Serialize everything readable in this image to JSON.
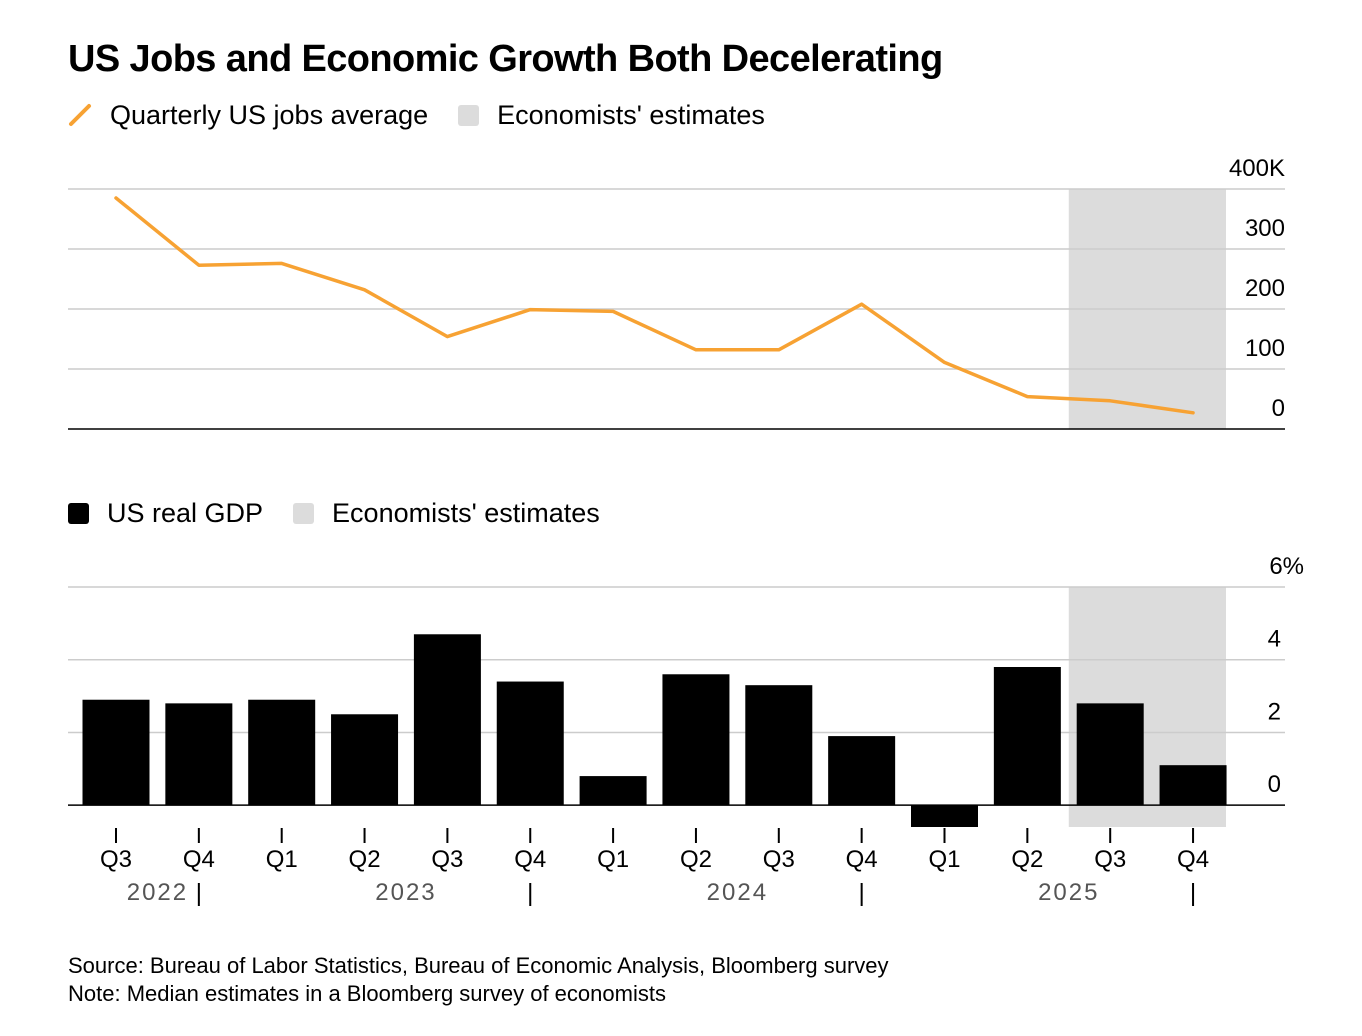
{
  "title": "US Jobs and Economic Growth Both Decelerating",
  "colors": {
    "jobs_line": "#F7A233",
    "gdp_bar": "#000000",
    "estimate_band": "#DCDCDC",
    "gridline": "#CCCCCC",
    "axis": "#000000",
    "year_label": "#555555"
  },
  "legend_top": {
    "line_label": "Quarterly US jobs average",
    "estimate_label": "Economists' estimates",
    "line_icon": "orange-line-icon",
    "estimate_icon": "gray-square-icon"
  },
  "legend_bottom": {
    "bar_label": "US real GDP",
    "estimate_label": "Economists' estimates",
    "bar_icon": "black-square-icon",
    "estimate_icon": "gray-square-icon"
  },
  "chart_data": [
    {
      "type": "line",
      "title": "Quarterly US jobs average",
      "categories": [
        "Q3 2022",
        "Q4 2022",
        "Q1 2023",
        "Q2 2023",
        "Q3 2023",
        "Q4 2023",
        "Q1 2024",
        "Q2 2024",
        "Q3 2024",
        "Q4 2024",
        "Q1 2025",
        "Q2 2025",
        "Q3 2025",
        "Q4 2025"
      ],
      "series": [
        {
          "name": "Quarterly US jobs average",
          "values": [
            385,
            273,
            276,
            232,
            154,
            199,
            196,
            132,
            132,
            208,
            111,
            54,
            47,
            27
          ]
        }
      ],
      "estimate_start_index": 12,
      "ylim": [
        0,
        400
      ],
      "yticks": [
        0,
        100,
        200,
        300,
        400
      ],
      "ytick_labels": [
        "0",
        "100",
        "200",
        "300",
        "400K"
      ],
      "grid": true
    },
    {
      "type": "bar",
      "title": "US real GDP",
      "categories": [
        "Q3 2022",
        "Q4 2022",
        "Q1 2023",
        "Q2 2023",
        "Q3 2023",
        "Q4 2023",
        "Q1 2024",
        "Q2 2024",
        "Q3 2024",
        "Q4 2024",
        "Q1 2025",
        "Q2 2025",
        "Q3 2025",
        "Q4 2025"
      ],
      "series": [
        {
          "name": "US real GDP",
          "values": [
            2.9,
            2.8,
            2.9,
            2.5,
            4.7,
            3.4,
            0.8,
            3.6,
            3.3,
            1.9,
            -0.6,
            3.8,
            2.8,
            1.1
          ]
        }
      ],
      "estimate_start_index": 12,
      "ylim": [
        -0.6,
        6
      ],
      "yticks": [
        0,
        2,
        4,
        6
      ],
      "ytick_labels": [
        "0",
        "2",
        "4",
        "6%"
      ],
      "grid": true
    }
  ],
  "x_axis": {
    "quarters": [
      "Q3",
      "Q4",
      "Q1",
      "Q2",
      "Q3",
      "Q4",
      "Q1",
      "Q2",
      "Q3",
      "Q4",
      "Q1",
      "Q2",
      "Q3",
      "Q4"
    ],
    "years": [
      {
        "label": "2022",
        "first_index": 0,
        "last_index": 1
      },
      {
        "label": "2023",
        "first_index": 2,
        "last_index": 5
      },
      {
        "label": "2024",
        "first_index": 6,
        "last_index": 9
      },
      {
        "label": "2025",
        "first_index": 10,
        "last_index": 13
      }
    ]
  },
  "footer": {
    "source": "Source: Bureau of Labor Statistics, Bureau of Economic Analysis, Bloomberg survey",
    "note": "Note: Median estimates in a Bloomberg survey of economists"
  }
}
